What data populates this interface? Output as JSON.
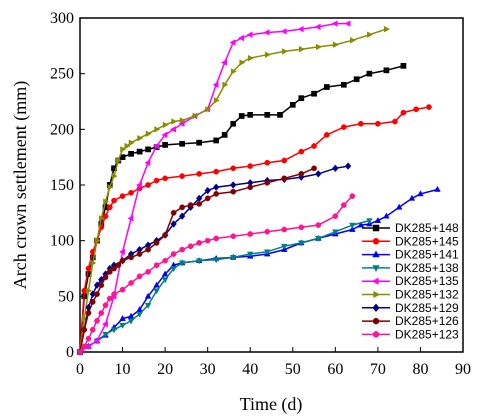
{
  "chart_data": {
    "type": "line",
    "xlabel": "Time (d)",
    "ylabel": "Arch crown settlement (mm)",
    "xlim": [
      0,
      90
    ],
    "ylim": [
      0,
      300
    ],
    "xticks": [
      0,
      10,
      20,
      30,
      40,
      50,
      60,
      70,
      80,
      90
    ],
    "yticks": [
      0,
      50,
      100,
      150,
      200,
      250,
      300
    ],
    "grid": false,
    "legend": "bottom-right",
    "series": [
      {
        "name": "DK285+148",
        "color": "#000000",
        "marker": "square",
        "points": [
          [
            0,
            0
          ],
          [
            1,
            50
          ],
          [
            2,
            70
          ],
          [
            3,
            85
          ],
          [
            4,
            100
          ],
          [
            5,
            115
          ],
          [
            6,
            130
          ],
          [
            7,
            150
          ],
          [
            8,
            165
          ],
          [
            9,
            172
          ],
          [
            10,
            175
          ],
          [
            12,
            178
          ],
          [
            14,
            180
          ],
          [
            16,
            182
          ],
          [
            18,
            184
          ],
          [
            20,
            186
          ],
          [
            24,
            187
          ],
          [
            28,
            188
          ],
          [
            32,
            190
          ],
          [
            34,
            195
          ],
          [
            36,
            205
          ],
          [
            38,
            212
          ],
          [
            40,
            213
          ],
          [
            44,
            213
          ],
          [
            47,
            213
          ],
          [
            50,
            222
          ],
          [
            52,
            228
          ],
          [
            55,
            232
          ],
          [
            58,
            238
          ],
          [
            62,
            240
          ],
          [
            65,
            245
          ],
          [
            68,
            250
          ],
          [
            72,
            253
          ],
          [
            76,
            257
          ]
        ]
      },
      {
        "name": "DK285+145",
        "color": "#ff0000",
        "marker": "circle",
        "points": [
          [
            0,
            0
          ],
          [
            1,
            55
          ],
          [
            2,
            75
          ],
          [
            3,
            90
          ],
          [
            4,
            100
          ],
          [
            5,
            112
          ],
          [
            6,
            122
          ],
          [
            7,
            130
          ],
          [
            8,
            136
          ],
          [
            10,
            140
          ],
          [
            12,
            143
          ],
          [
            14,
            147
          ],
          [
            16,
            150
          ],
          [
            18,
            154
          ],
          [
            20,
            156
          ],
          [
            24,
            158
          ],
          [
            28,
            160
          ],
          [
            32,
            162
          ],
          [
            36,
            165
          ],
          [
            40,
            167
          ],
          [
            44,
            170
          ],
          [
            48,
            172
          ],
          [
            52,
            180
          ],
          [
            55,
            185
          ],
          [
            58,
            195
          ],
          [
            62,
            202
          ],
          [
            66,
            205
          ],
          [
            70,
            205
          ],
          [
            74,
            207
          ],
          [
            76,
            215
          ],
          [
            79,
            218
          ],
          [
            82,
            220
          ]
        ]
      },
      {
        "name": "DK285+141",
        "color": "#0000ff",
        "marker": "triangle-up",
        "points": [
          [
            0,
            0
          ],
          [
            2,
            5
          ],
          [
            4,
            10
          ],
          [
            6,
            15
          ],
          [
            8,
            22
          ],
          [
            10,
            30
          ],
          [
            12,
            32
          ],
          [
            14,
            38
          ],
          [
            16,
            50
          ],
          [
            18,
            60
          ],
          [
            20,
            70
          ],
          [
            22,
            78
          ],
          [
            24,
            80
          ],
          [
            28,
            82
          ],
          [
            32,
            84
          ],
          [
            36,
            85
          ],
          [
            40,
            86
          ],
          [
            44,
            88
          ],
          [
            48,
            92
          ],
          [
            52,
            98
          ],
          [
            56,
            102
          ],
          [
            60,
            106
          ],
          [
            64,
            110
          ],
          [
            66,
            114
          ],
          [
            68,
            115
          ],
          [
            70,
            118
          ],
          [
            72,
            122
          ],
          [
            75,
            130
          ],
          [
            78,
            138
          ],
          [
            80,
            142
          ],
          [
            84,
            146
          ]
        ]
      },
      {
        "name": "DK285+138",
        "color": "#008080",
        "marker": "triangle-down",
        "points": [
          [
            0,
            0
          ],
          [
            2,
            5
          ],
          [
            4,
            10
          ],
          [
            6,
            16
          ],
          [
            8,
            20
          ],
          [
            10,
            24
          ],
          [
            12,
            28
          ],
          [
            14,
            34
          ],
          [
            16,
            42
          ],
          [
            18,
            55
          ],
          [
            20,
            65
          ],
          [
            22,
            75
          ],
          [
            24,
            80
          ],
          [
            28,
            82
          ],
          [
            32,
            83
          ],
          [
            36,
            85
          ],
          [
            40,
            88
          ],
          [
            44,
            90
          ],
          [
            48,
            95
          ],
          [
            52,
            98
          ],
          [
            56,
            102
          ],
          [
            60,
            108
          ],
          [
            64,
            114
          ],
          [
            68,
            118
          ]
        ]
      },
      {
        "name": "DK285+135",
        "color": "#ff00ff",
        "marker": "triangle-left",
        "points": [
          [
            0,
            0
          ],
          [
            2,
            5
          ],
          [
            4,
            10
          ],
          [
            6,
            25
          ],
          [
            8,
            50
          ],
          [
            10,
            90
          ],
          [
            12,
            120
          ],
          [
            14,
            150
          ],
          [
            16,
            170
          ],
          [
            18,
            185
          ],
          [
            20,
            195
          ],
          [
            22,
            200
          ],
          [
            24,
            205
          ],
          [
            27,
            212
          ],
          [
            30,
            218
          ],
          [
            32,
            240
          ],
          [
            34,
            260
          ],
          [
            36,
            278
          ],
          [
            38,
            282
          ],
          [
            40,
            285
          ],
          [
            44,
            287
          ],
          [
            48,
            288
          ],
          [
            52,
            290
          ],
          [
            56,
            292
          ],
          [
            60,
            295
          ],
          [
            63,
            295
          ]
        ]
      },
      {
        "name": "DK285+132",
        "color": "#8b8b00",
        "marker": "triangle-right",
        "points": [
          [
            0,
            0
          ],
          [
            1,
            30
          ],
          [
            2,
            55
          ],
          [
            3,
            80
          ],
          [
            4,
            100
          ],
          [
            5,
            120
          ],
          [
            6,
            135
          ],
          [
            7,
            148
          ],
          [
            8,
            158
          ],
          [
            9,
            172
          ],
          [
            10,
            182
          ],
          [
            11,
            185
          ],
          [
            12,
            188
          ],
          [
            14,
            192
          ],
          [
            16,
            196
          ],
          [
            18,
            200
          ],
          [
            20,
            204
          ],
          [
            22,
            207
          ],
          [
            24,
            208
          ],
          [
            27,
            212
          ],
          [
            30,
            218
          ],
          [
            32,
            226
          ],
          [
            34,
            240
          ],
          [
            36,
            252
          ],
          [
            38,
            260
          ],
          [
            40,
            264
          ],
          [
            44,
            267
          ],
          [
            48,
            270
          ],
          [
            52,
            272
          ],
          [
            56,
            274
          ],
          [
            60,
            276
          ],
          [
            64,
            280
          ],
          [
            68,
            285
          ],
          [
            72,
            290
          ]
        ]
      },
      {
        "name": "DK285+129",
        "color": "#00008b",
        "marker": "diamond",
        "points": [
          [
            0,
            0
          ],
          [
            1,
            20
          ],
          [
            2,
            40
          ],
          [
            3,
            52
          ],
          [
            4,
            60
          ],
          [
            5,
            65
          ],
          [
            6,
            70
          ],
          [
            7,
            75
          ],
          [
            8,
            78
          ],
          [
            10,
            82
          ],
          [
            12,
            88
          ],
          [
            14,
            92
          ],
          [
            16,
            96
          ],
          [
            18,
            100
          ],
          [
            20,
            105
          ],
          [
            22,
            115
          ],
          [
            24,
            122
          ],
          [
            26,
            130
          ],
          [
            28,
            138
          ],
          [
            30,
            145
          ],
          [
            32,
            148
          ],
          [
            36,
            150
          ],
          [
            40,
            152
          ],
          [
            44,
            154
          ],
          [
            48,
            155
          ],
          [
            52,
            157
          ],
          [
            56,
            160
          ],
          [
            60,
            165
          ],
          [
            63,
            167
          ]
        ]
      },
      {
        "name": "DK285+126",
        "color": "#800000",
        "marker": "circle",
        "points": [
          [
            0,
            0
          ],
          [
            1,
            20
          ],
          [
            2,
            35
          ],
          [
            3,
            45
          ],
          [
            4,
            52
          ],
          [
            5,
            60
          ],
          [
            6,
            67
          ],
          [
            7,
            72
          ],
          [
            8,
            75
          ],
          [
            9,
            78
          ],
          [
            10,
            82
          ],
          [
            12,
            85
          ],
          [
            14,
            88
          ],
          [
            16,
            92
          ],
          [
            18,
            98
          ],
          [
            20,
            105
          ],
          [
            22,
            125
          ],
          [
            24,
            130
          ],
          [
            26,
            132
          ],
          [
            28,
            133
          ],
          [
            30,
            138
          ],
          [
            32,
            142
          ],
          [
            36,
            144
          ],
          [
            40,
            148
          ],
          [
            44,
            152
          ],
          [
            48,
            156
          ],
          [
            52,
            160
          ],
          [
            55,
            165
          ]
        ]
      },
      {
        "name": "DK285+123",
        "color": "#ff1493",
        "marker": "circle",
        "points": [
          [
            0,
            0
          ],
          [
            1,
            5
          ],
          [
            2,
            12
          ],
          [
            3,
            20
          ],
          [
            4,
            28
          ],
          [
            5,
            35
          ],
          [
            6,
            42
          ],
          [
            7,
            48
          ],
          [
            8,
            52
          ],
          [
            10,
            56
          ],
          [
            12,
            62
          ],
          [
            14,
            68
          ],
          [
            16,
            72
          ],
          [
            18,
            78
          ],
          [
            20,
            82
          ],
          [
            22,
            88
          ],
          [
            24,
            92
          ],
          [
            26,
            95
          ],
          [
            28,
            98
          ],
          [
            30,
            100
          ],
          [
            32,
            102
          ],
          [
            36,
            104
          ],
          [
            40,
            106
          ],
          [
            44,
            108
          ],
          [
            48,
            110
          ],
          [
            52,
            112
          ],
          [
            56,
            114
          ],
          [
            60,
            122
          ],
          [
            62,
            132
          ],
          [
            64,
            140
          ]
        ]
      }
    ]
  }
}
